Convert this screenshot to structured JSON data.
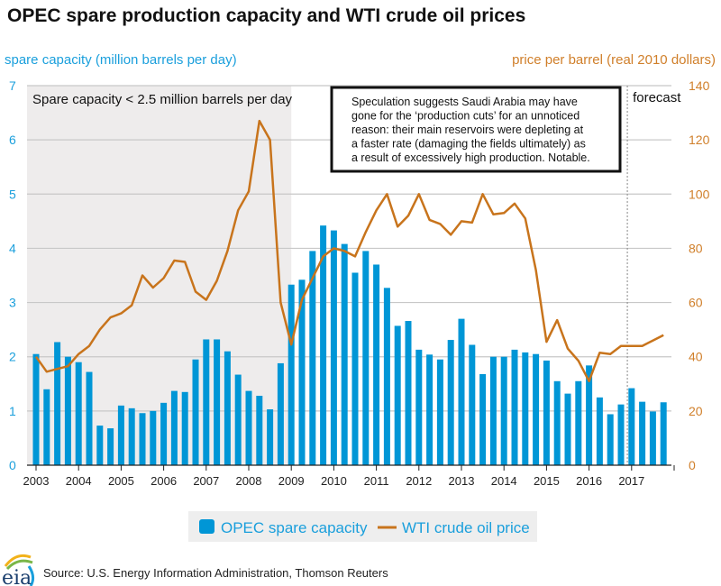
{
  "chart_data": {
    "type": "bar+line",
    "title": "OPEC spare production capacity and WTI crude oil prices",
    "ylabel_left": "spare capacity (million barrels per day)",
    "ylabel_right": "price per barrel (real 2010 dollars)",
    "ylim_left": [
      0,
      7
    ],
    "ylim_right": [
      0,
      140
    ],
    "yticks_left": [
      "0",
      "1",
      "2",
      "3",
      "4",
      "5",
      "6",
      "7"
    ],
    "yticks_right": [
      "0",
      "20",
      "40",
      "60",
      "80",
      "100",
      "120",
      "140"
    ],
    "xticks": [
      "2003",
      "2004",
      "2005",
      "2006",
      "2007",
      "2008",
      "2009",
      "2010",
      "2011",
      "2012",
      "2013",
      "2014",
      "2015",
      "2016",
      "2017"
    ],
    "grid": true,
    "x_start_year": 2003,
    "frequency": "quarterly",
    "series": [
      {
        "name": "OPEC spare capacity",
        "type": "bar",
        "axis": "left",
        "color": "#0096d6",
        "values": [
          2.05,
          1.4,
          2.27,
          2.0,
          1.9,
          1.72,
          0.73,
          0.68,
          1.1,
          1.05,
          0.96,
          1.0,
          1.15,
          1.37,
          1.35,
          1.95,
          2.32,
          2.32,
          2.1,
          1.67,
          1.37,
          1.28,
          1.03,
          1.88,
          3.33,
          3.42,
          3.95,
          4.42,
          4.33,
          4.08,
          3.55,
          3.95,
          3.7,
          3.27,
          2.57,
          2.66,
          2.13,
          2.04,
          1.95,
          2.31,
          2.7,
          2.22,
          1.68,
          2.0,
          2.0,
          2.13,
          2.08,
          2.05,
          1.93,
          1.55,
          1.32,
          1.55,
          1.84,
          1.25,
          0.94,
          1.12,
          1.42,
          1.17,
          0.99,
          1.16
        ]
      },
      {
        "name": "WTI crude oil price",
        "type": "line",
        "axis": "right",
        "color": "#c8741c",
        "values": [
          40,
          34.5,
          35.5,
          36.5,
          41,
          44,
          50,
          54.5,
          56,
          59,
          70,
          65.5,
          69,
          75.5,
          75,
          64,
          61,
          68,
          79,
          94,
          101,
          127,
          120,
          60,
          44.5,
          61,
          69,
          77,
          80,
          79,
          77,
          86,
          94,
          100,
          88,
          92,
          100,
          90.5,
          89,
          85,
          90,
          89.5,
          100,
          92.5,
          93,
          96.5,
          91,
          72,
          45.5,
          53.5,
          43,
          38.5,
          31,
          41.5,
          41,
          44,
          44,
          44,
          46,
          48
        ]
      }
    ],
    "shaded_region": {
      "from": 2003,
      "to": 2009,
      "label": "Spare capacity < 2.5 million barrels per day",
      "color": "#eeecec"
    },
    "forecast": {
      "from": 2016.9,
      "label": "forecast"
    },
    "annotation": "Speculation suggests Saudi Arabia may have gone for the ‘production cuts’ for an unnoticed reason: their main reservoirs were depleting at a faster rate (damaging the fields ultimately) as a result of excessively high production. Notable.",
    "legend": {
      "placement": "bottom",
      "entries": [
        "OPEC spare capacity",
        "WTI crude oil price"
      ]
    },
    "source": "Source: U.S. Energy Information Administration, Thomson Reuters",
    "logo": "eia"
  }
}
